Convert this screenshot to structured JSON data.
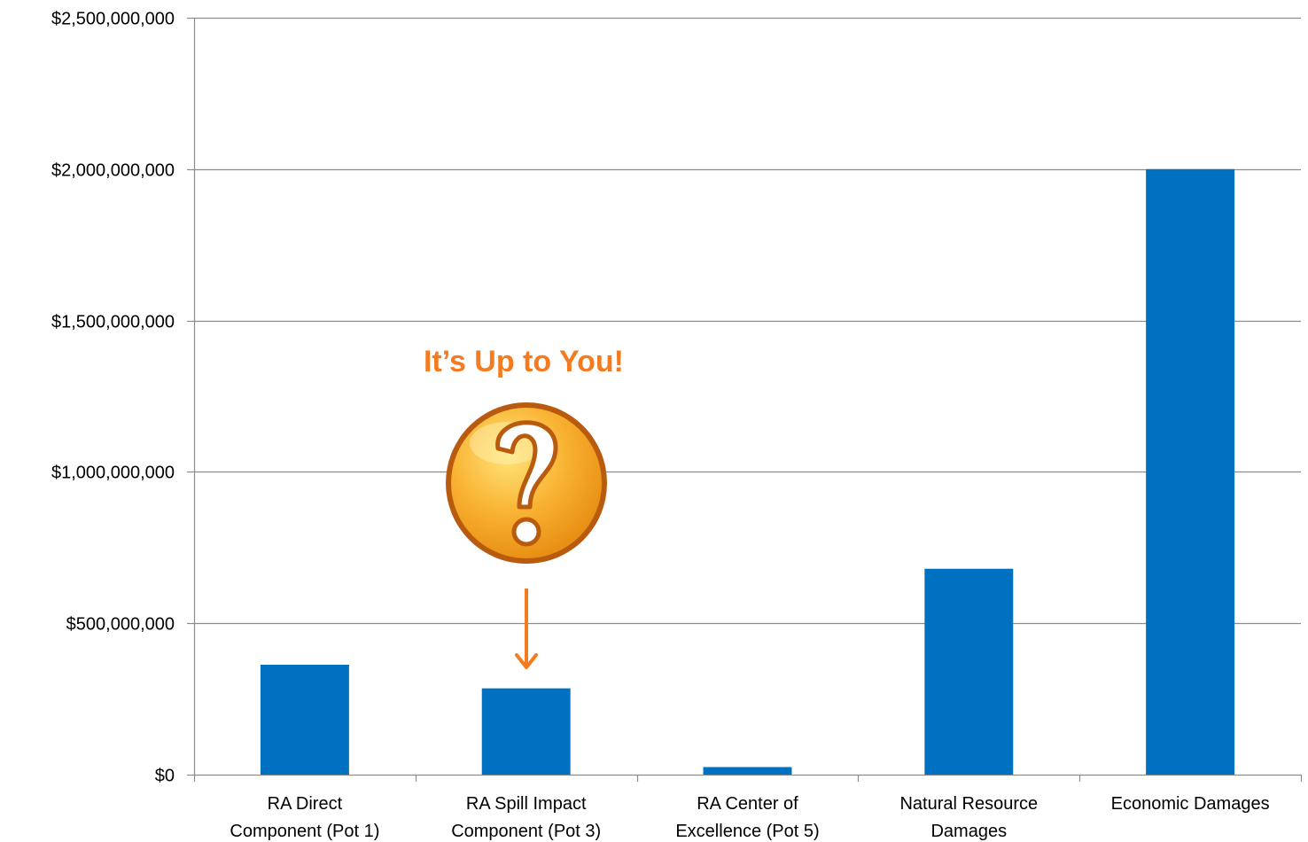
{
  "chart_data": {
    "type": "bar",
    "categories": [
      [
        "RA Direct",
        "Component (Pot 1)"
      ],
      [
        "RA Spill Impact",
        "Component (Pot 3)"
      ],
      [
        "RA Center of",
        "Excellence (Pot 5)"
      ],
      [
        "Natural Resource",
        "Damages"
      ],
      [
        "Economic Damages"
      ]
    ],
    "values": [
      363000000,
      285000000,
      25000000,
      680000000,
      2000000000
    ],
    "ylim": [
      0,
      2500000000
    ],
    "yticks": [
      0,
      500000000,
      1000000000,
      1500000000,
      2000000000,
      2500000000
    ],
    "ytick_labels": [
      "$0",
      "$500,000,000",
      "$1,000,000,000",
      "$1,500,000,000",
      "$2,000,000,000",
      "$2,500,000,000"
    ],
    "grid": true,
    "bar_color": "#0070C0",
    "grid_color": "#8C8C8C"
  },
  "annotation": {
    "text": "It’s Up to You!",
    "color": "#F47B20",
    "icon": "question-mark-icon",
    "target_category_index": 1
  }
}
